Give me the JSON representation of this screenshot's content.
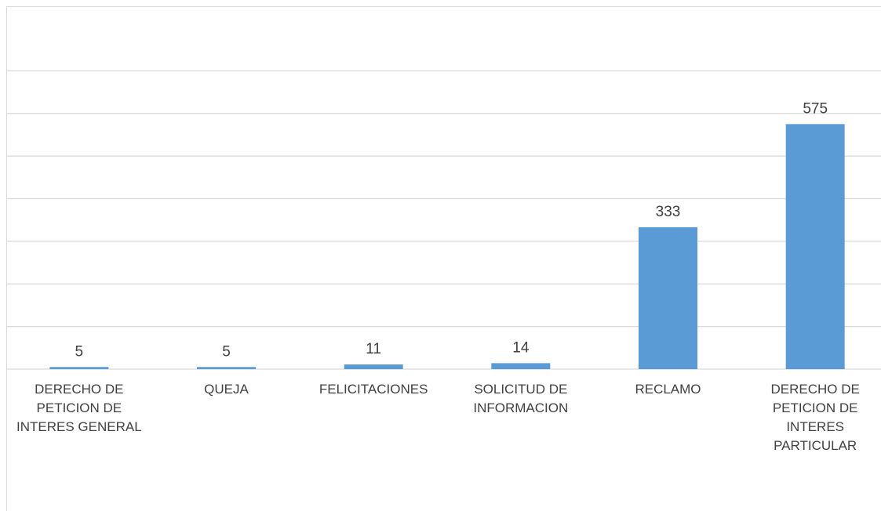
{
  "chart_data": {
    "type": "bar",
    "categories": [
      "DERECHO DE PETICION DE INTERES GENERAL",
      "QUEJA",
      "FELICITACIONES",
      "SOLICITUD DE INFORMACION",
      "RECLAMO",
      "DERECHO DE PETICION DE INTERES PARTICULAR"
    ],
    "values": [
      5,
      5,
      11,
      14,
      333,
      575
    ],
    "color": "#5b9bd5",
    "ylim": [
      0,
      800
    ],
    "yticks": [
      0,
      100,
      200,
      300,
      400,
      500,
      600,
      700
    ],
    "grid": true
  }
}
